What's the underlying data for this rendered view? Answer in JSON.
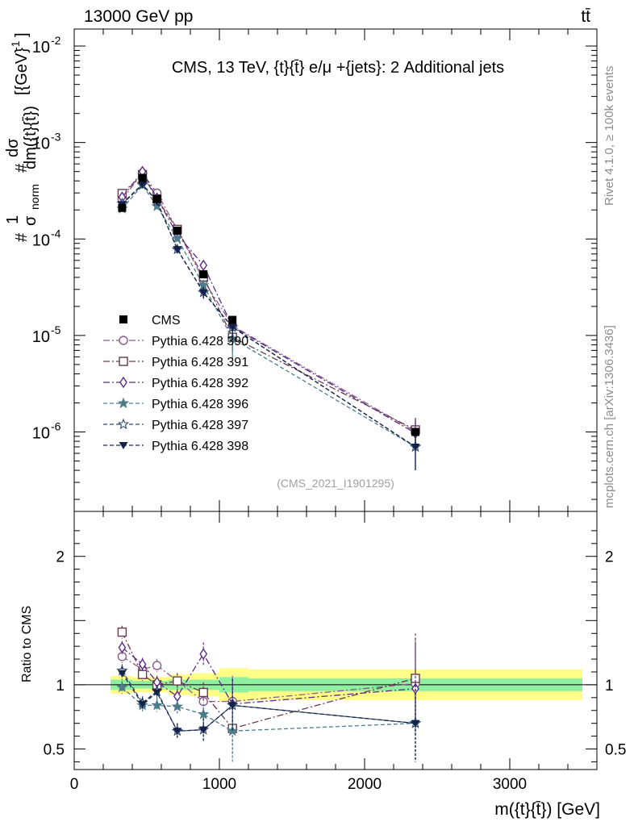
{
  "header": {
    "left": "13000 GeV pp",
    "right": "tt̄"
  },
  "side_labels": {
    "rivet": "Rivet 4.1.0, ≥ 100k events",
    "mcplots": "mcplots.cern.ch [arXiv:1306.3436]"
  },
  "chart_data": {
    "type": "line",
    "title": "CMS, 13 TeV, {t}{t̄} e/μ +{jets}: 2 Additional jets",
    "watermark": "(CMS_2021_I1901295)",
    "xlabel": "m({t}{t̄}) [GeV]",
    "ylabel": "#1/σnorm #dσ/dm({t}{t̄}) [{GeV}^-1]",
    "ylabel_parts": {
      "a": "#",
      "one": "1",
      "sigma": "σ",
      "norm": "norm",
      "b": "#",
      "dsig": "dσ",
      "dm": "dm({t}{t̄})",
      "unit": "[{GeV}",
      "exp": "-1",
      "close": "]"
    },
    "ratio_ylabel": "Ratio to CMS",
    "xlim": [
      0,
      3600
    ],
    "ylim": [
      1.5e-07,
      0.015
    ],
    "ratio_ylim": [
      0.34,
      2.35
    ],
    "x_ticks": [
      0,
      1000,
      2000,
      3000
    ],
    "x_tick_labels": [
      "0",
      "1000",
      "2000",
      "3000"
    ],
    "y_tick_labels": [
      {
        "base": "10",
        "exp": "-2",
        "value": 0.01
      },
      {
        "base": "10",
        "exp": "-3",
        "value": 0.001
      },
      {
        "base": "10",
        "exp": "-4",
        "value": 0.0001
      },
      {
        "base": "10",
        "exp": "-5",
        "value": 1e-05
      },
      {
        "base": "10",
        "exp": "-6",
        "value": 1e-06
      }
    ],
    "ratio_y_ticks": [
      0.5,
      1,
      2
    ],
    "ratio_y_tick_labels": [
      "0.5",
      "1",
      "2"
    ],
    "bins": [
      {
        "lo": 250,
        "hi": 400
      },
      {
        "lo": 400,
        "hi": 550
      },
      {
        "lo": 550,
        "hi": 650
      },
      {
        "lo": 650,
        "hi": 800
      },
      {
        "lo": 800,
        "hi": 1000
      },
      {
        "lo": 1000,
        "hi": 1200
      },
      {
        "lo": 1200,
        "hi": 3500
      }
    ],
    "data": {
      "name": "CMS",
      "x": [
        330,
        470,
        570,
        710,
        890,
        1090,
        2350
      ],
      "y": [
        0.00021,
        0.00043,
        0.00026,
        0.000122,
        4.3e-05,
        1.45e-05,
        1e-06
      ],
      "band_green": [
        0.04,
        0.03,
        0.03,
        0.04,
        0.04,
        0.06,
        0.05
      ],
      "band_yellow": [
        0.07,
        0.06,
        0.06,
        0.08,
        0.09,
        0.13,
        0.12
      ]
    },
    "series": [
      {
        "name": "Pythia 6.428 390",
        "color": "#8a5a8a",
        "marker": "circle-open",
        "dash": "8,3,2,3",
        "ratio": [
          1.22,
          1.12,
          1.15,
          1.03,
          0.87,
          0.87,
          1.01
        ],
        "ratio_err": [
          0.05,
          0.05,
          0.05,
          0.06,
          0.08,
          0.2,
          0.35
        ]
      },
      {
        "name": "Pythia 6.428 391",
        "color": "#6a3a4a",
        "marker": "square-open",
        "dash": "8,3,2,3",
        "ratio": [
          1.41,
          1.08,
          1.0,
          1.03,
          0.94,
          0.66,
          1.05
        ],
        "ratio_err": [
          0.05,
          0.05,
          0.05,
          0.06,
          0.08,
          0.2,
          0.35
        ]
      },
      {
        "name": "Pythia 6.428 392",
        "color": "#5b2a8a",
        "marker": "diamond-open",
        "dash": "8,3,2,3",
        "ratio": [
          1.29,
          1.16,
          1.02,
          0.91,
          1.24,
          0.85,
          0.97
        ],
        "ratio_err": [
          0.05,
          0.05,
          0.05,
          0.06,
          0.09,
          0.2,
          0.35
        ]
      },
      {
        "name": "Pythia 6.428 396",
        "color": "#4d7d8a",
        "marker": "star-filled",
        "dash": "5,3",
        "ratio": [
          0.98,
          0.84,
          0.84,
          0.83,
          0.77,
          0.64,
          0.7
        ],
        "ratio_err": [
          0.05,
          0.05,
          0.05,
          0.06,
          0.08,
          0.25,
          0.3
        ]
      },
      {
        "name": "Pythia 6.428 397",
        "color": "#2e4a6e",
        "marker": "star-open",
        "dash": "5,3",
        "ratio": [
          1.11,
          0.86,
          0.95,
          0.64,
          0.65,
          0.84,
          0.7
        ],
        "ratio_err": [
          0.05,
          0.05,
          0.05,
          0.06,
          0.09,
          0.2,
          0.3
        ]
      },
      {
        "name": "Pythia 6.428 398",
        "color": "#14224a",
        "marker": "tri-down-filled",
        "dash": "5,3",
        "ratio": [
          1.09,
          0.85,
          0.94,
          0.64,
          0.65,
          0.84,
          0.7
        ],
        "ratio_err": [
          0.05,
          0.05,
          0.05,
          0.06,
          0.09,
          0.2,
          0.3
        ]
      }
    ]
  }
}
